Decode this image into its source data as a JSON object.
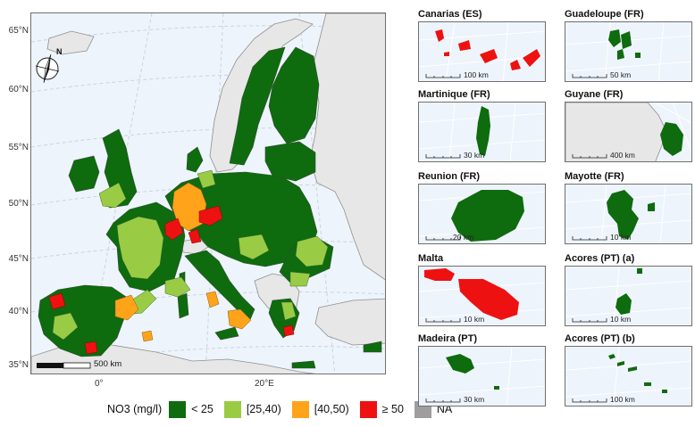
{
  "main_map": {
    "lat_labels": [
      "65°N",
      "60°N",
      "55°N",
      "50°N",
      "45°N",
      "40°N",
      "35°N"
    ],
    "lon_labels": [
      "0°",
      "20°E"
    ],
    "north_arrow": "N",
    "scale_bar": "500 km"
  },
  "legend": {
    "title": "NO3 (mg/l)",
    "items": [
      {
        "label": "< 25",
        "color": "#0e6b0e"
      },
      {
        "label": "[25,40)",
        "color": "#99cc44"
      },
      {
        "label": "[40,50)",
        "color": "#ffa31a"
      },
      {
        "label": "≥ 50",
        "color": "#ee1111"
      },
      {
        "label": "NA",
        "color": "#9e9e9e"
      }
    ]
  },
  "insets": [
    {
      "title": "Canarias (ES)",
      "scale": "100 km"
    },
    {
      "title": "Guadeloupe (FR)",
      "scale": "50 km"
    },
    {
      "title": "Martinique (FR)",
      "scale": "30 km"
    },
    {
      "title": "Guyane (FR)",
      "scale": "400 km"
    },
    {
      "title": "Reunion (FR)",
      "scale": "20 km"
    },
    {
      "title": "Mayotte (FR)",
      "scale": "10 km"
    },
    {
      "title": "Malta",
      "scale": "10 km"
    },
    {
      "title": "Acores (PT) (a)",
      "scale": "10 km"
    },
    {
      "title": "Madeira (PT)",
      "scale": "30 km"
    },
    {
      "title": "Acores (PT) (b)",
      "scale": "100 km"
    }
  ]
}
